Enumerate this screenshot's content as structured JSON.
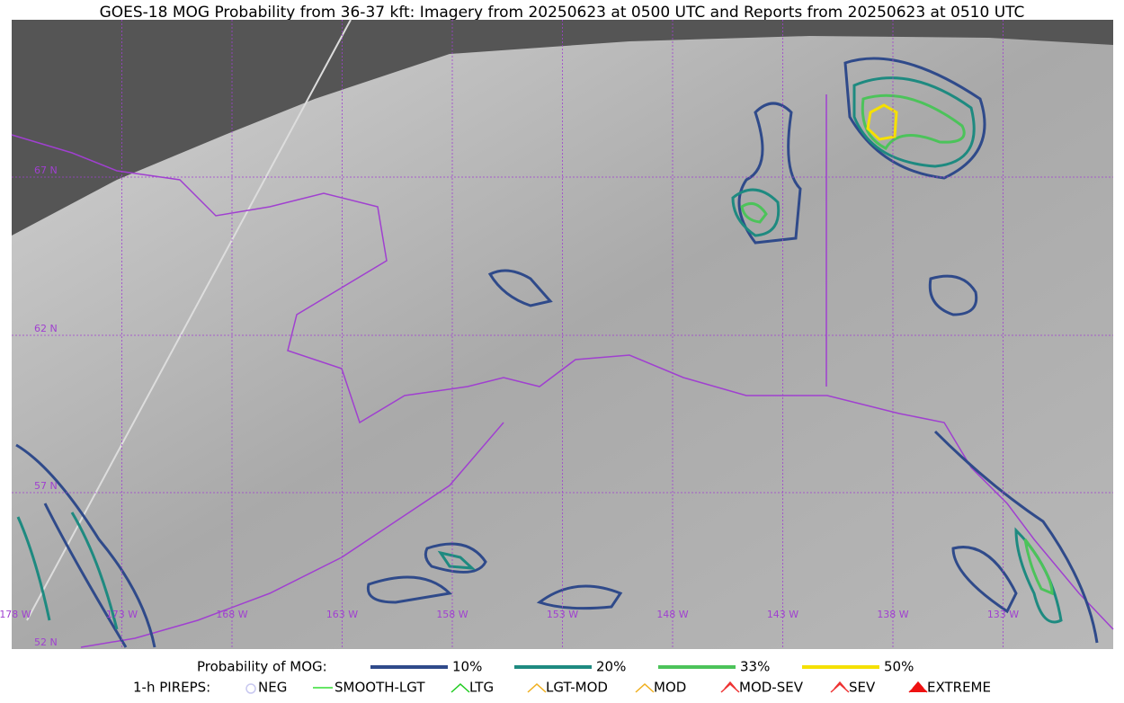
{
  "header": {
    "title": "GOES-18 MOG Probability from 36-37 kft: Imagery from 20250623 at 0500 UTC and Reports from 20250623 at 0510 UTC"
  },
  "map": {
    "lat_labels": [
      "67 N",
      "62 N",
      "57 N",
      "52 N"
    ],
    "lon_labels": [
      "178 W",
      "173 W",
      "168 W",
      "163 W",
      "158 W",
      "153 W",
      "148 W",
      "143 W",
      "138 W",
      "133 W"
    ]
  },
  "legend": {
    "probability": {
      "title": "Probability of MOG:",
      "items": [
        "10%",
        "20%",
        "33%",
        "50%"
      ]
    },
    "pireps": {
      "title": "1-h PIREPS:",
      "items": [
        "NEG",
        "SMOOTH-LGT",
        "LTG",
        "LGT-MOD",
        "MOD",
        "MOD-SEV",
        "SEV",
        "EXTREME"
      ]
    }
  }
}
